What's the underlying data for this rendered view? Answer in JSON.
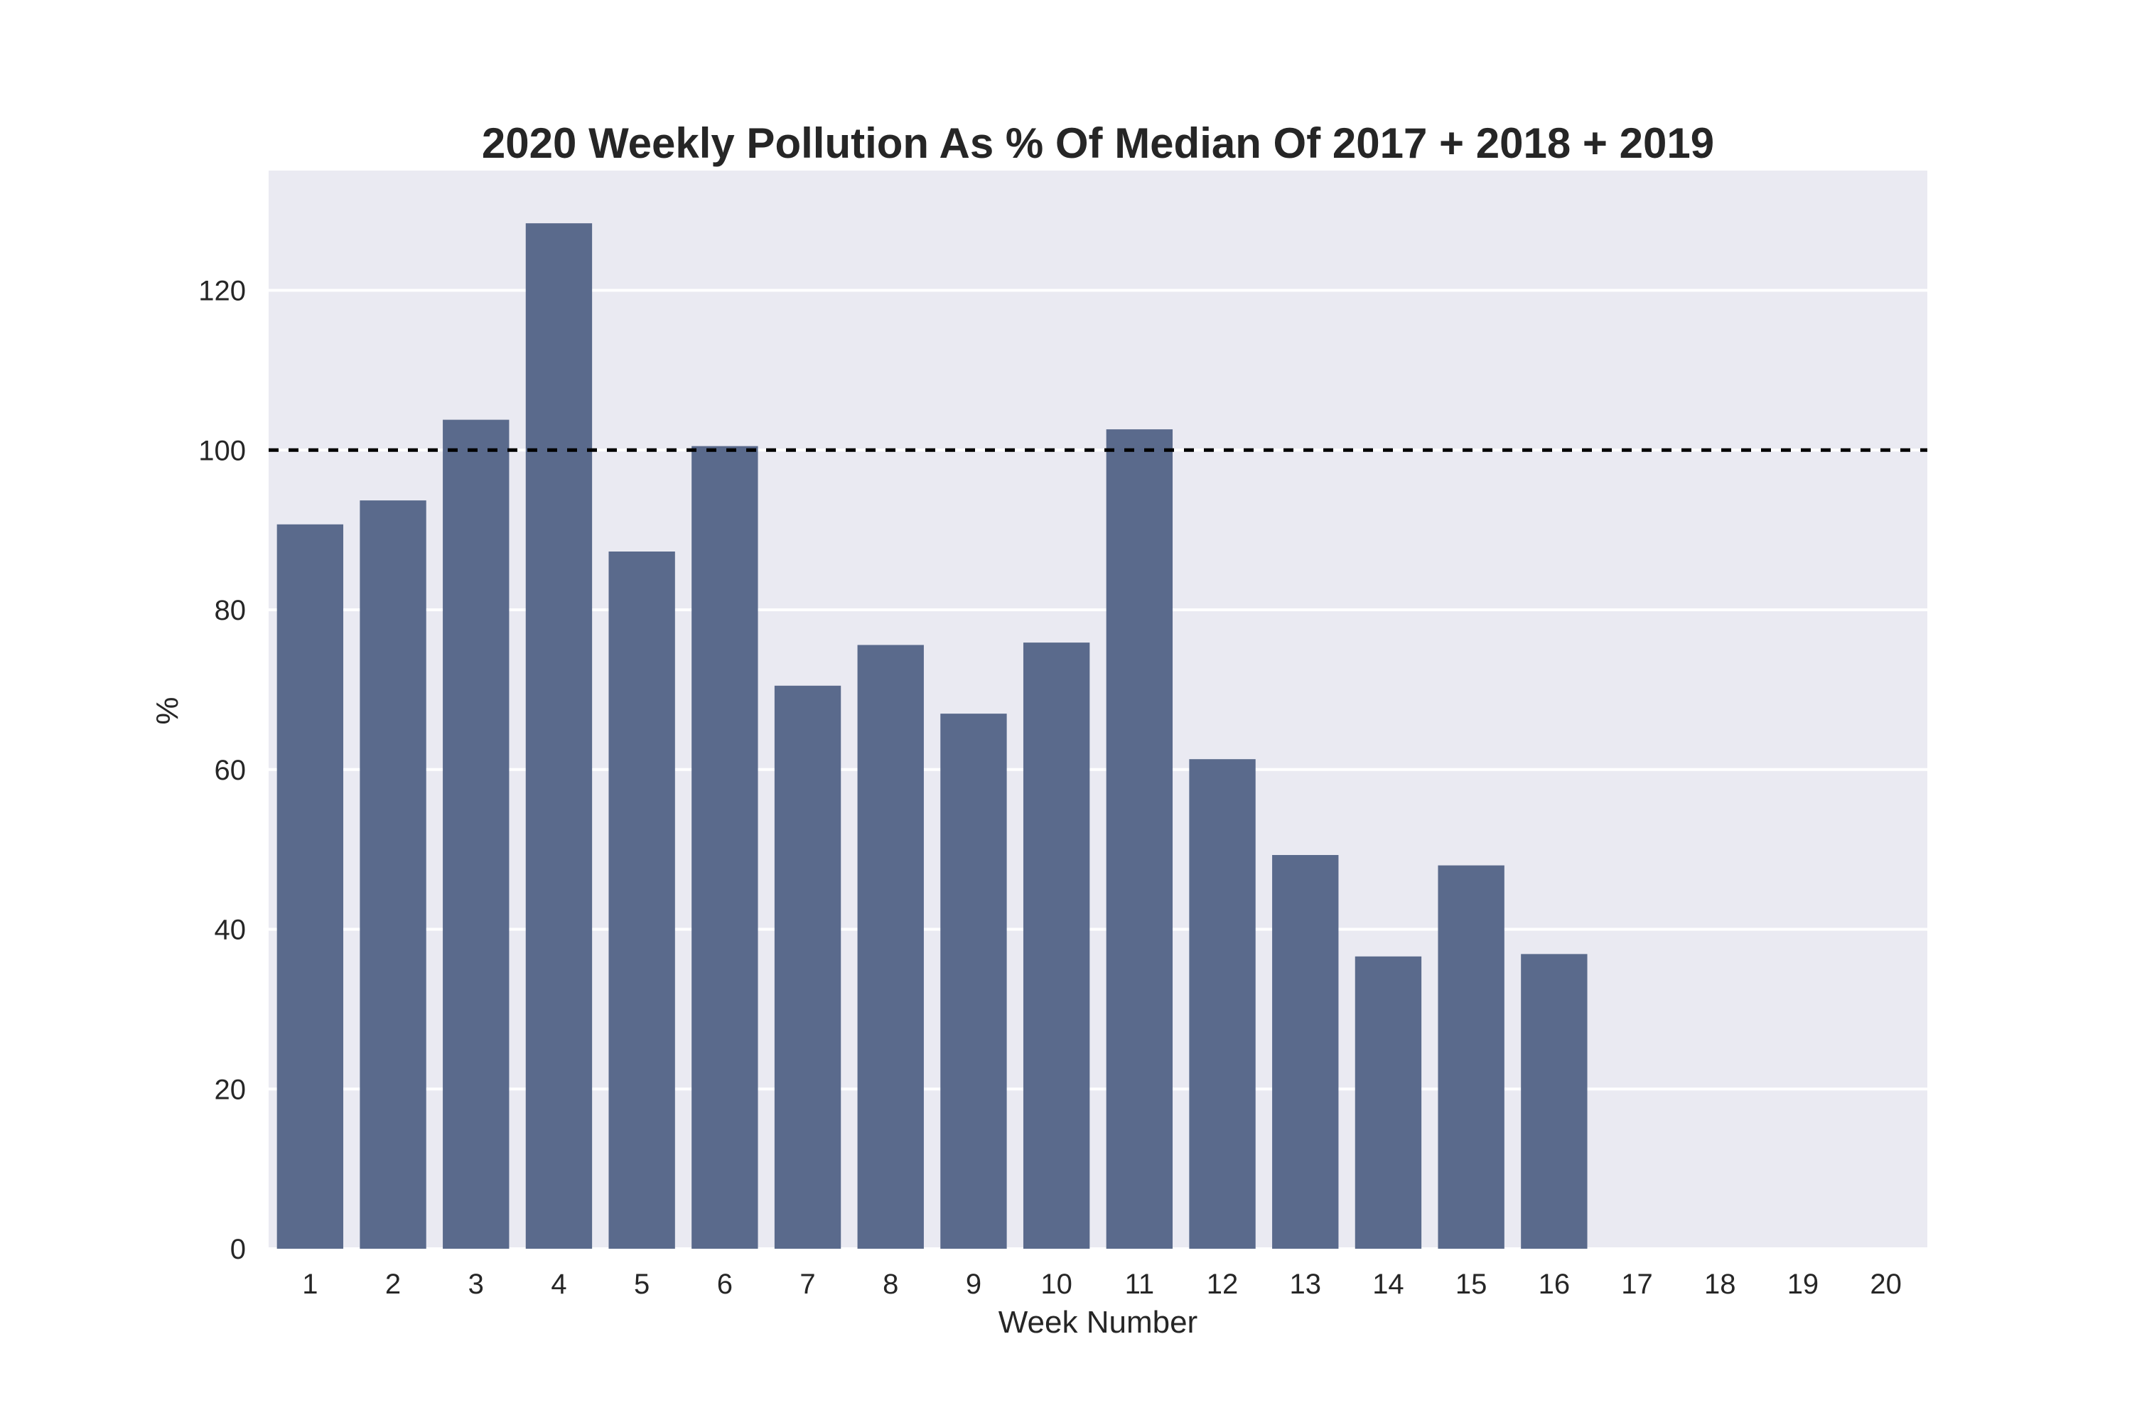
{
  "chart_data": {
    "type": "bar",
    "title": "2020 Weekly Pollution As % Of Median Of 2017 + 2018 + 2019",
    "xlabel": "Week Number",
    "ylabel": "%",
    "categories": [
      "1",
      "2",
      "3",
      "4",
      "5",
      "6",
      "7",
      "8",
      "9",
      "10",
      "11",
      "12",
      "13",
      "14",
      "15",
      "16",
      "17",
      "18",
      "19",
      "20"
    ],
    "values": [
      90.7,
      93.7,
      103.8,
      128.4,
      87.3,
      100.5,
      70.5,
      75.6,
      67.0,
      75.9,
      102.6,
      61.3,
      49.3,
      36.6,
      48.0,
      36.9,
      null,
      null,
      null,
      null
    ],
    "ylim": [
      0,
      135
    ],
    "yticks": [
      0,
      20,
      40,
      60,
      80,
      100,
      120
    ],
    "reference_line": {
      "value": 100,
      "style": "dashed",
      "color": "#000000"
    },
    "grid": true,
    "colors": {
      "bar": "#5a6a8c",
      "plot_background": "#eaeaf2",
      "grid": "#ffffff"
    }
  }
}
